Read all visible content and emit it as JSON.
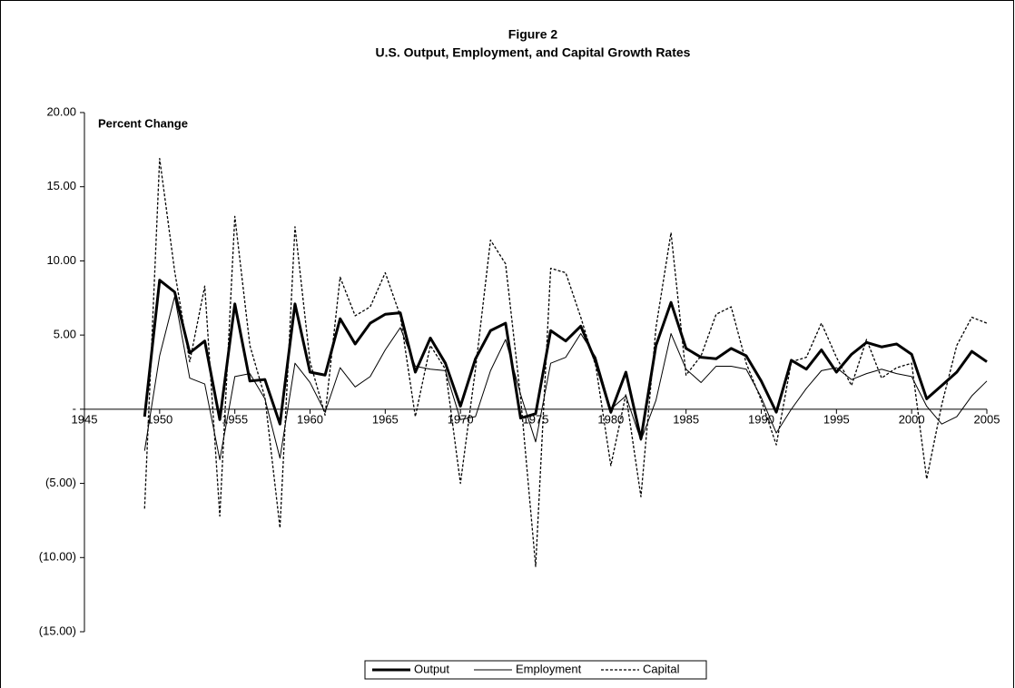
{
  "chart_data": {
    "type": "line",
    "title": "Figure 2",
    "subtitle": "U.S. Output, Employment, and Capital Growth Rates",
    "y_label": "Percent Change",
    "x": [
      1949,
      1950,
      1951,
      1952,
      1953,
      1954,
      1955,
      1956,
      1957,
      1958,
      1959,
      1960,
      1961,
      1962,
      1963,
      1964,
      1965,
      1966,
      1967,
      1968,
      1969,
      1970,
      1971,
      1972,
      1973,
      1974,
      1975,
      1976,
      1977,
      1978,
      1979,
      1980,
      1981,
      1982,
      1983,
      1984,
      1985,
      1986,
      1987,
      1988,
      1989,
      1990,
      1991,
      1992,
      1993,
      1994,
      1995,
      1996,
      1997,
      1998,
      1999,
      2000,
      2001,
      2002,
      2003,
      2004,
      2005
    ],
    "series": [
      {
        "name": "Output",
        "color": "#000000",
        "style": "thick",
        "values": [
          -0.5,
          8.7,
          7.9,
          3.8,
          4.6,
          -0.7,
          7.1,
          1.9,
          2.0,
          -1.0,
          7.1,
          2.5,
          2.3,
          6.1,
          4.4,
          5.8,
          6.4,
          6.5,
          2.5,
          4.8,
          3.1,
          0.2,
          3.4,
          5.3,
          5.8,
          -0.6,
          -0.3,
          5.3,
          4.6,
          5.6,
          3.2,
          -0.2,
          2.5,
          -2.0,
          4.3,
          7.2,
          4.1,
          3.5,
          3.4,
          4.1,
          3.6,
          1.9,
          -0.2,
          3.3,
          2.7,
          4.0,
          2.5,
          3.7,
          4.5,
          4.2,
          4.4,
          3.7,
          0.7,
          1.6,
          2.5,
          3.9,
          3.2
        ]
      },
      {
        "name": "Employment",
        "color": "#000000",
        "style": "thin",
        "values": [
          -2.8,
          3.6,
          7.6,
          2.1,
          1.7,
          -3.4,
          2.2,
          2.4,
          0.7,
          -3.3,
          3.1,
          1.8,
          -0.2,
          2.8,
          1.5,
          2.2,
          4.0,
          5.5,
          2.9,
          2.7,
          2.6,
          -0.7,
          -0.5,
          2.6,
          4.7,
          1.0,
          -2.2,
          3.1,
          3.5,
          5.1,
          3.5,
          0.0,
          0.9,
          -2.1,
          0.6,
          5.1,
          2.7,
          1.8,
          2.9,
          2.9,
          2.7,
          0.8,
          -1.6,
          0.0,
          1.4,
          2.6,
          2.8,
          2.0,
          2.4,
          2.7,
          2.4,
          2.2,
          0.2,
          -1.0,
          -0.5,
          0.9,
          1.9
        ]
      },
      {
        "name": "Capital",
        "color": "#000000",
        "style": "dotted",
        "values": [
          -6.7,
          16.9,
          9.3,
          3.2,
          8.3,
          -7.2,
          13.0,
          4.3,
          0.8,
          -8.0,
          12.3,
          3.2,
          -0.4,
          8.9,
          6.3,
          6.9,
          9.2,
          6.3,
          -0.5,
          4.3,
          2.7,
          -5.0,
          2.7,
          11.4,
          9.8,
          0.8,
          -10.6,
          9.5,
          9.2,
          6.2,
          2.9,
          -3.8,
          1.0,
          -5.9,
          5.5,
          11.9,
          2.3,
          3.6,
          6.4,
          6.9,
          3.1,
          0.6,
          -2.4,
          3.2,
          3.5,
          5.8,
          3.5,
          1.6,
          4.7,
          2.1,
          2.8,
          3.1,
          -4.7,
          0.3,
          4.3,
          6.2,
          5.8
        ]
      }
    ],
    "xlim": [
      1945,
      2005
    ],
    "xticks": [
      1945,
      1950,
      1955,
      1960,
      1965,
      1970,
      1975,
      1980,
      1985,
      1990,
      1995,
      2000,
      2005
    ],
    "ylim": [
      -15,
      20
    ],
    "yticks": [
      {
        "value": -15,
        "label": "(15.00)"
      },
      {
        "value": -10,
        "label": "(10.00)"
      },
      {
        "value": -5,
        "label": "(5.00)"
      },
      {
        "value": 0,
        "label": "-"
      },
      {
        "value": 5,
        "label": "5.00"
      },
      {
        "value": 10,
        "label": "10.00"
      },
      {
        "value": 15,
        "label": "15.00"
      },
      {
        "value": 20,
        "label": "20.00"
      }
    ],
    "grid": false,
    "legend": "bottom"
  }
}
